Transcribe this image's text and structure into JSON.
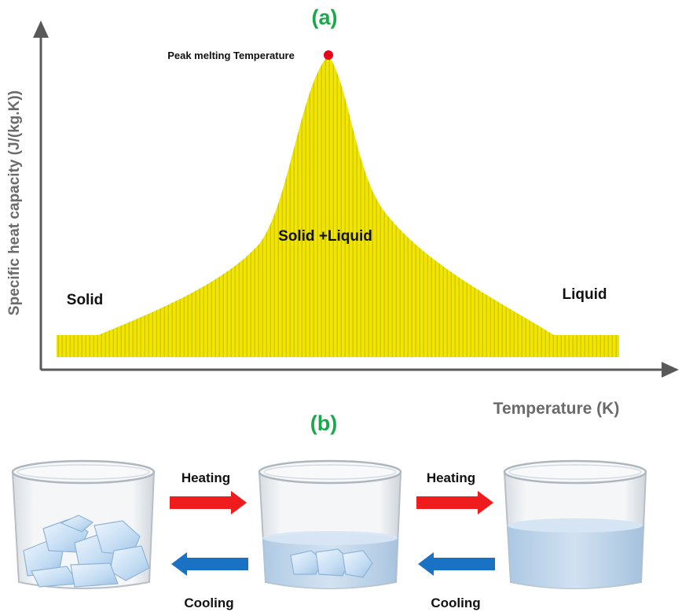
{
  "panel_a": {
    "label": "(a)",
    "y_axis_label": "Specific heat capacity (J/(kg.K))",
    "x_axis_label": "Temperature (K)",
    "peak_label": "Peak melting Temperature",
    "region_solid": "Solid",
    "region_mixed": "Solid +Liquid",
    "region_liquid": "Liquid"
  },
  "panel_b": {
    "label": "(b)",
    "heating_label_1": "Heating",
    "heating_label_2": "Heating",
    "cooling_label_1": "Cooling",
    "cooling_label_2": "Cooling"
  },
  "colors": {
    "curve_fill": "#f2e600",
    "curve_stripe": "#c8c000",
    "panel_label": "#1aa84b",
    "axis": "#595959",
    "peak_dot": "#e8001a",
    "heating_arrow": "#ee1c1c",
    "cooling_arrow": "#1a72c4",
    "water": "#bcd4ec",
    "ice": "#d6e8f8"
  }
}
